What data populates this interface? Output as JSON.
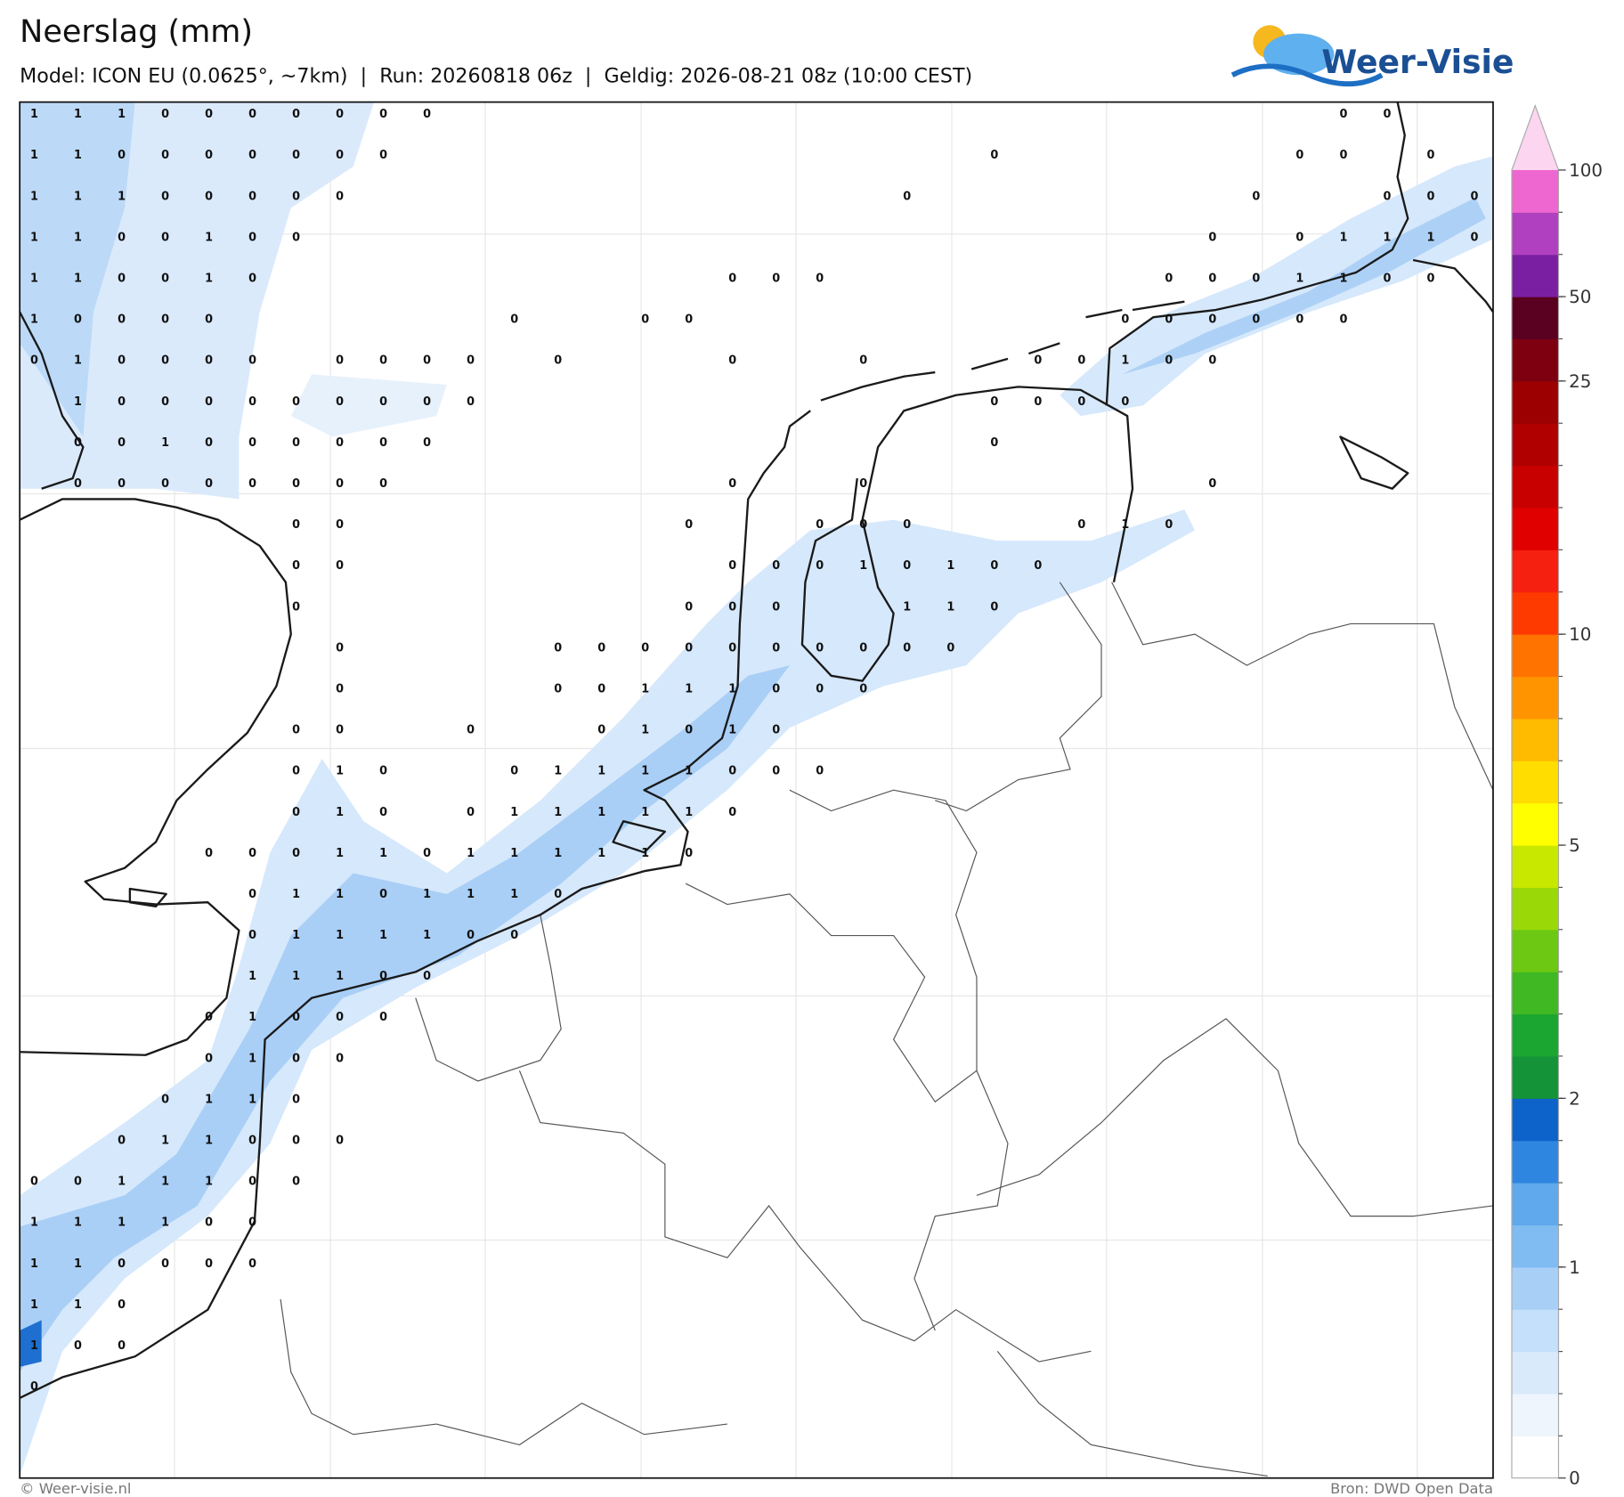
{
  "header": {
    "title": "Neerslag (mm)",
    "subtitle": "Model: ICON EU (0.0625°, ~7km)  |  Run: 20260818 06z  |  Geldig: 2026-08-21 08z (10:00 CEST)",
    "logo": "Weer-Visie"
  },
  "footer": {
    "copyright": "© Weer-visie.nl",
    "source": "Bron: DWD Open Data"
  },
  "colorbar": {
    "ticks": [
      0,
      1,
      2,
      5,
      10,
      25,
      50,
      100
    ],
    "colors": [
      "#ffffff",
      "#eef5fd",
      "#d9eafb",
      "#c4e0fa",
      "#a8d0f7",
      "#80bbf2",
      "#5fa9ec",
      "#2f86e0",
      "#0d63c9",
      "#149338",
      "#1aa630",
      "#3fb824",
      "#6cc812",
      "#9ad808",
      "#c8e800",
      "#ffff00",
      "#ffdd00",
      "#ffbb00",
      "#ff9400",
      "#ff7300",
      "#ff3a00",
      "#f52010",
      "#e00000",
      "#c80000",
      "#b00000",
      "#9c0000",
      "#7e0010",
      "#5a0020",
      "#7b1fa2",
      "#b040c0",
      "#ee66d0"
    ],
    "over_color": "#fcd5f0"
  },
  "grid": {
    "values": [
      [
        1,
        1,
        1,
        0,
        0,
        0,
        0,
        0,
        0,
        0,
        null,
        null,
        null,
        null,
        null,
        null,
        null,
        null,
        null,
        null,
        null,
        null,
        null,
        null,
        null,
        null,
        null,
        null,
        null,
        null,
        0,
        0
      ],
      [
        1,
        1,
        0,
        0,
        0,
        0,
        0,
        0,
        0,
        null,
        null,
        null,
        null,
        null,
        null,
        null,
        null,
        null,
        null,
        null,
        null,
        null,
        0,
        null,
        null,
        null,
        null,
        null,
        null,
        0,
        0,
        null,
        0
      ],
      [
        1,
        1,
        1,
        0,
        0,
        0,
        0,
        0,
        null,
        null,
        null,
        null,
        null,
        null,
        null,
        null,
        null,
        null,
        null,
        null,
        0,
        null,
        null,
        null,
        null,
        null,
        null,
        null,
        0,
        null,
        null,
        0,
        0,
        0
      ],
      [
        1,
        1,
        0,
        0,
        1,
        0,
        0,
        null,
        null,
        null,
        null,
        null,
        null,
        null,
        null,
        null,
        null,
        null,
        null,
        null,
        null,
        null,
        null,
        null,
        null,
        null,
        null,
        0,
        null,
        0,
        1,
        1,
        1,
        0
      ],
      [
        1,
        1,
        0,
        0,
        1,
        0,
        null,
        null,
        null,
        null,
        null,
        null,
        null,
        null,
        null,
        null,
        0,
        0,
        0,
        null,
        null,
        null,
        null,
        null,
        null,
        null,
        0,
        0,
        0,
        1,
        1,
        0,
        0
      ],
      [
        1,
        0,
        0,
        0,
        0,
        null,
        null,
        null,
        null,
        null,
        null,
        0,
        null,
        null,
        0,
        0,
        null,
        null,
        null,
        null,
        null,
        null,
        null,
        null,
        null,
        0,
        0,
        0,
        0,
        0,
        0
      ],
      [
        0,
        1,
        0,
        0,
        0,
        0,
        null,
        0,
        0,
        0,
        0,
        null,
        0,
        null,
        null,
        null,
        0,
        null,
        null,
        0,
        null,
        null,
        null,
        0,
        0,
        1,
        0,
        0
      ],
      [
        null,
        1,
        0,
        0,
        0,
        0,
        0,
        0,
        0,
        0,
        0,
        null,
        null,
        null,
        null,
        null,
        null,
        null,
        null,
        null,
        null,
        null,
        0,
        0,
        0,
        0
      ],
      [
        null,
        0,
        0,
        1,
        0,
        0,
        0,
        0,
        0,
        0,
        null,
        null,
        null,
        null,
        null,
        null,
        null,
        null,
        null,
        null,
        null,
        null,
        0
      ],
      [
        null,
        0,
        0,
        0,
        0,
        0,
        0,
        0,
        0,
        null,
        null,
        null,
        null,
        null,
        null,
        null,
        0,
        null,
        null,
        0,
        null,
        null,
        null,
        null,
        null,
        null,
        null,
        0
      ],
      [
        null,
        null,
        null,
        null,
        null,
        null,
        0,
        0,
        null,
        null,
        null,
        null,
        null,
        null,
        null,
        0,
        null,
        null,
        0,
        0,
        0,
        null,
        null,
        null,
        0,
        1,
        0
      ],
      [
        null,
        null,
        null,
        null,
        null,
        null,
        0,
        0,
        null,
        null,
        null,
        null,
        null,
        null,
        null,
        null,
        0,
        0,
        0,
        1,
        0,
        1,
        0,
        0
      ],
      [
        null,
        null,
        null,
        null,
        null,
        null,
        0,
        null,
        null,
        null,
        null,
        null,
        null,
        null,
        null,
        0,
        0,
        0,
        null,
        null,
        1,
        1,
        0
      ],
      [
        null,
        null,
        null,
        null,
        null,
        null,
        null,
        0,
        null,
        null,
        null,
        null,
        0,
        0,
        0,
        0,
        0,
        0,
        0,
        0,
        0,
        0
      ],
      [
        null,
        null,
        null,
        null,
        null,
        null,
        null,
        0,
        null,
        null,
        null,
        null,
        0,
        0,
        1,
        1,
        1,
        0,
        0,
        0
      ],
      [
        null,
        null,
        null,
        null,
        null,
        null,
        0,
        0,
        null,
        null,
        0,
        null,
        null,
        0,
        1,
        0,
        1,
        0
      ],
      [
        null,
        null,
        null,
        null,
        null,
        null,
        0,
        1,
        0,
        null,
        null,
        0,
        1,
        1,
        1,
        1,
        0,
        0,
        0
      ],
      [
        null,
        null,
        null,
        null,
        null,
        null,
        0,
        1,
        0,
        null,
        0,
        1,
        1,
        1,
        1,
        1,
        0
      ],
      [
        null,
        null,
        null,
        null,
        0,
        0,
        0,
        1,
        1,
        0,
        1,
        1,
        1,
        1,
        1,
        0
      ],
      [
        null,
        null,
        null,
        null,
        null,
        0,
        1,
        1,
        0,
        1,
        1,
        1,
        0
      ],
      [
        null,
        null,
        null,
        null,
        null,
        0,
        1,
        1,
        1,
        1,
        0,
        0
      ],
      [
        null,
        null,
        null,
        null,
        null,
        1,
        1,
        1,
        0,
        0
      ],
      [
        null,
        null,
        null,
        null,
        0,
        1,
        0,
        0,
        0
      ],
      [
        null,
        null,
        null,
        null,
        0,
        1,
        0,
        0
      ],
      [
        null,
        null,
        null,
        0,
        1,
        1,
        0
      ],
      [
        null,
        null,
        0,
        1,
        1,
        0,
        0,
        0
      ],
      [
        0,
        0,
        1,
        1,
        1,
        0,
        0
      ],
      [
        1,
        1,
        1,
        1,
        0,
        0
      ],
      [
        1,
        1,
        0,
        0,
        0,
        0
      ],
      [
        1,
        1,
        0
      ],
      [
        1,
        0,
        0
      ],
      [
        0
      ]
    ]
  }
}
